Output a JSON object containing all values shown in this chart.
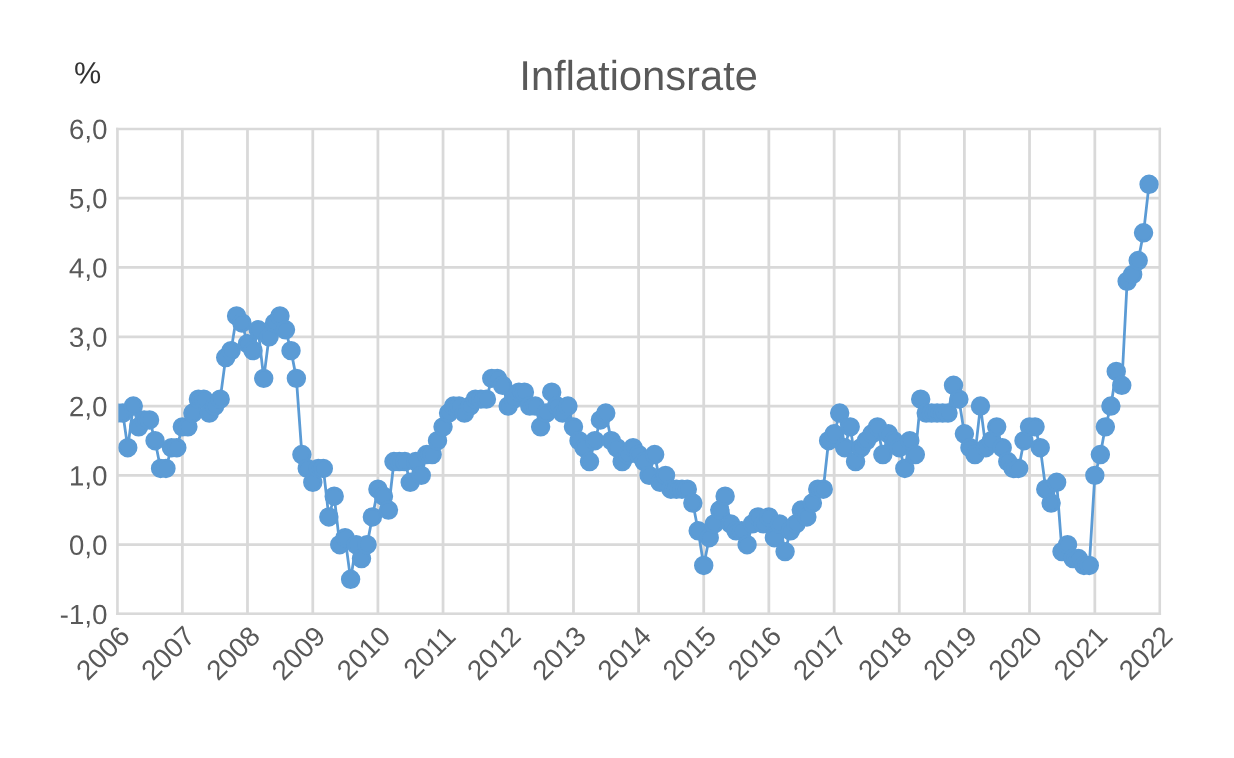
{
  "chart_data": {
    "type": "line",
    "title": "Inflationsrate",
    "ylabel": "%",
    "x": [
      "2006-01",
      "2006-02",
      "2006-03",
      "2006-04",
      "2006-05",
      "2006-06",
      "2006-07",
      "2006-08",
      "2006-09",
      "2006-10",
      "2006-11",
      "2006-12",
      "2007-01",
      "2007-02",
      "2007-03",
      "2007-04",
      "2007-05",
      "2007-06",
      "2007-07",
      "2007-08",
      "2007-09",
      "2007-10",
      "2007-11",
      "2007-12",
      "2008-01",
      "2008-02",
      "2008-03",
      "2008-04",
      "2008-05",
      "2008-06",
      "2008-07",
      "2008-08",
      "2008-09",
      "2008-10",
      "2008-11",
      "2008-12",
      "2009-01",
      "2009-02",
      "2009-03",
      "2009-04",
      "2009-05",
      "2009-06",
      "2009-07",
      "2009-08",
      "2009-09",
      "2009-10",
      "2009-11",
      "2009-12",
      "2010-01",
      "2010-02",
      "2010-03",
      "2010-04",
      "2010-05",
      "2010-06",
      "2010-07",
      "2010-08",
      "2010-09",
      "2010-10",
      "2010-11",
      "2010-12",
      "2011-01",
      "2011-02",
      "2011-03",
      "2011-04",
      "2011-05",
      "2011-06",
      "2011-07",
      "2011-08",
      "2011-09",
      "2011-10",
      "2011-11",
      "2011-12",
      "2012-01",
      "2012-02",
      "2012-03",
      "2012-04",
      "2012-05",
      "2012-06",
      "2012-07",
      "2012-08",
      "2012-09",
      "2012-10",
      "2012-11",
      "2012-12",
      "2013-01",
      "2013-02",
      "2013-03",
      "2013-04",
      "2013-05",
      "2013-06",
      "2013-07",
      "2013-08",
      "2013-09",
      "2013-10",
      "2013-11",
      "2013-12",
      "2014-01",
      "2014-02",
      "2014-03",
      "2014-04",
      "2014-05",
      "2014-06",
      "2014-07",
      "2014-08",
      "2014-09",
      "2014-10",
      "2014-11",
      "2014-12",
      "2015-01",
      "2015-02",
      "2015-03",
      "2015-04",
      "2015-05",
      "2015-06",
      "2015-07",
      "2015-08",
      "2015-09",
      "2015-10",
      "2015-11",
      "2015-12",
      "2016-01",
      "2016-02",
      "2016-03",
      "2016-04",
      "2016-05",
      "2016-06",
      "2016-07",
      "2016-08",
      "2016-09",
      "2016-10",
      "2016-11",
      "2016-12",
      "2017-01",
      "2017-02",
      "2017-03",
      "2017-04",
      "2017-05",
      "2017-06",
      "2017-07",
      "2017-08",
      "2017-09",
      "2017-10",
      "2017-11",
      "2017-12",
      "2018-01",
      "2018-02",
      "2018-03",
      "2018-04",
      "2018-05",
      "2018-06",
      "2018-07",
      "2018-08",
      "2018-09",
      "2018-10",
      "2018-11",
      "2018-12",
      "2019-01",
      "2019-02",
      "2019-03",
      "2019-04",
      "2019-05",
      "2019-06",
      "2019-07",
      "2019-08",
      "2019-09",
      "2019-10",
      "2019-11",
      "2019-12",
      "2020-01",
      "2020-02",
      "2020-03",
      "2020-04",
      "2020-05",
      "2020-06",
      "2020-07",
      "2020-08",
      "2020-09",
      "2020-10",
      "2020-11",
      "2020-12",
      "2021-01",
      "2021-02",
      "2021-03",
      "2021-04",
      "2021-05",
      "2021-06",
      "2021-07",
      "2021-08",
      "2021-09",
      "2021-10",
      "2021-11"
    ],
    "series": [
      {
        "color": "#5b9bd5",
        "values": [
          1.9,
          1.9,
          1.4,
          2.0,
          1.7,
          1.8,
          1.8,
          1.5,
          1.1,
          1.1,
          1.4,
          1.4,
          1.7,
          1.7,
          1.9,
          2.1,
          2.1,
          1.9,
          2.0,
          2.1,
          2.7,
          2.8,
          3.3,
          3.2,
          2.9,
          2.8,
          3.1,
          2.4,
          3.0,
          3.2,
          3.3,
          3.1,
          2.8,
          2.4,
          1.3,
          1.1,
          0.9,
          1.1,
          1.1,
          0.4,
          0.7,
          0.0,
          0.1,
          -0.5,
          0.0,
          -0.2,
          0.0,
          0.4,
          0.8,
          0.7,
          0.5,
          1.2,
          1.2,
          1.2,
          0.9,
          1.2,
          1.0,
          1.3,
          1.3,
          1.5,
          1.7,
          1.9,
          2.0,
          2.0,
          1.9,
          2.0,
          2.1,
          2.1,
          2.1,
          2.4,
          2.4,
          2.3,
          2.0,
          2.1,
          2.2,
          2.2,
          2.0,
          2.0,
          1.7,
          1.9,
          2.2,
          2.0,
          1.9,
          2.0,
          1.7,
          1.5,
          1.4,
          1.2,
          1.5,
          1.8,
          1.9,
          1.5,
          1.4,
          1.2,
          1.3,
          1.4,
          1.3,
          1.2,
          1.0,
          1.3,
          0.9,
          1.0,
          0.8,
          0.8,
          0.8,
          0.8,
          0.6,
          0.2,
          -0.3,
          0.1,
          0.3,
          0.5,
          0.7,
          0.3,
          0.2,
          0.2,
          0.0,
          0.3,
          0.4,
          0.3,
          0.4,
          0.1,
          0.3,
          -0.1,
          0.2,
          0.3,
          0.5,
          0.4,
          0.6,
          0.8,
          0.8,
          1.5,
          1.6,
          1.9,
          1.4,
          1.7,
          1.2,
          1.4,
          1.5,
          1.6,
          1.7,
          1.3,
          1.6,
          1.5,
          1.4,
          1.1,
          1.5,
          1.3,
          2.1,
          1.9,
          1.9,
          1.9,
          1.9,
          1.9,
          2.3,
          2.1,
          1.6,
          1.4,
          1.3,
          2.0,
          1.4,
          1.5,
          1.7,
          1.4,
          1.2,
          1.1,
          1.1,
          1.5,
          1.7,
          1.7,
          1.4,
          0.8,
          0.6,
          0.9,
          -0.1,
          0.0,
          -0.2,
          -0.2,
          -0.3,
          -0.3,
          1.0,
          1.3,
          1.7,
          2.0,
          2.5,
          2.3,
          3.8,
          3.9,
          4.1,
          4.5,
          5.2
        ]
      }
    ],
    "xlim": [
      "2006-01",
      "2022-01"
    ],
    "xticks": [
      "2006",
      "2007",
      "2008",
      "2009",
      "2010",
      "2011",
      "2012",
      "2013",
      "2014",
      "2015",
      "2016",
      "2017",
      "2018",
      "2019",
      "2020",
      "2021",
      "2022"
    ],
    "ylim": [
      -1,
      6
    ],
    "yticks": [
      {
        "value": -1,
        "label": "-1,0"
      },
      {
        "value": 0,
        "label": "0,0"
      },
      {
        "value": 1,
        "label": "1,0"
      },
      {
        "value": 2,
        "label": "2,0"
      },
      {
        "value": 3,
        "label": "3,0"
      },
      {
        "value": 4,
        "label": "4,0"
      },
      {
        "value": 5,
        "label": "5,0"
      },
      {
        "value": 6,
        "label": "6,0"
      }
    ],
    "grid": true,
    "marker": "circle",
    "line_style": "solid",
    "legend": false
  }
}
